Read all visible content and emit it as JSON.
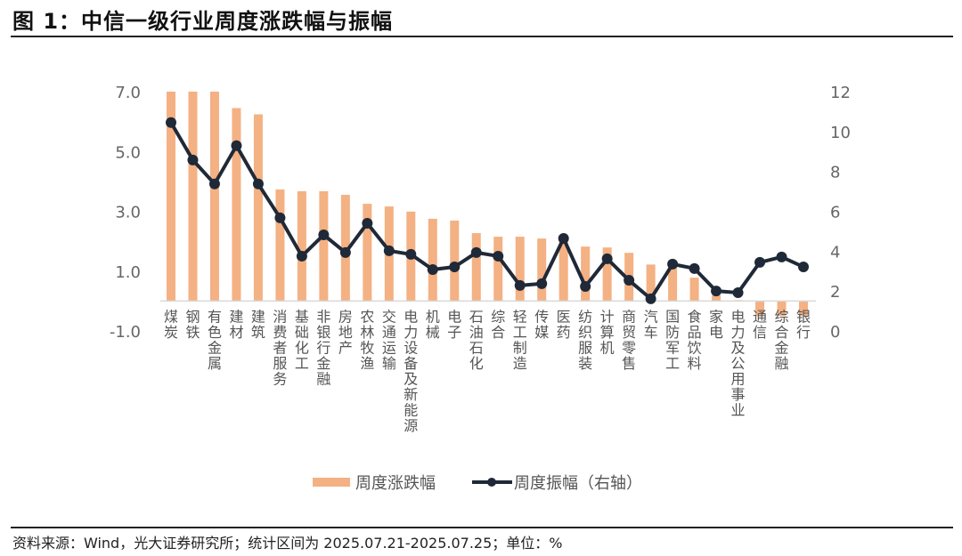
{
  "header": {
    "title": "图 1：中信一级行业周度涨跌幅与振幅"
  },
  "footer": {
    "source": "资料来源：Wind，光大证券研究所；统计区间为 2025.07.21-2025.07.25；单位：%"
  },
  "colors": {
    "bar": "#F4B183",
    "line": "#1F2937",
    "axis_text": "#666666",
    "baseline": "#D9D9D9"
  },
  "chart_data": {
    "type": "bar+line",
    "title": "中信一级行业周度涨跌幅与振幅",
    "categories": [
      "煤炭",
      "钢铁",
      "有色金属",
      "建材",
      "建筑",
      "消费者服务",
      "基础化工",
      "非银行金融",
      "房地产",
      "农林牧渔",
      "交通运输",
      "电力设备及新能源",
      "机械",
      "电子",
      "石油石化",
      "综合",
      "轻工制造",
      "传媒",
      "医药",
      "纺织服装",
      "计算机",
      "商贸零售",
      "汽车",
      "国防军工",
      "食品饮料",
      "家电",
      "电力及公用事业",
      "通信",
      "综合金融",
      "银行"
    ],
    "series": [
      {
        "name": "周度涨跌幅",
        "type": "bar",
        "axis": "left",
        "values": [
          7.0,
          7.0,
          7.0,
          6.45,
          6.24,
          3.73,
          3.67,
          3.67,
          3.55,
          3.25,
          3.16,
          2.99,
          2.75,
          2.69,
          2.27,
          2.15,
          2.15,
          2.09,
          2.05,
          1.82,
          1.79,
          1.61,
          1.22,
          1.22,
          0.78,
          0.2,
          0.03,
          -0.5,
          -0.5,
          -0.5
        ]
      },
      {
        "name": "周度振幅（右轴）",
        "type": "line",
        "axis": "right",
        "values": [
          10.45,
          8.57,
          7.37,
          9.29,
          7.37,
          5.67,
          3.75,
          4.82,
          3.93,
          5.4,
          4.02,
          3.84,
          3.08,
          3.21,
          3.93,
          3.75,
          2.28,
          2.37,
          4.64,
          2.23,
          3.62,
          2.54,
          1.61,
          3.35,
          3.13,
          2.0,
          1.92,
          3.44,
          3.71,
          3.21
        ]
      }
    ],
    "left_axis": {
      "ticks": [
        "7.0",
        "5.0",
        "3.0",
        "1.0",
        "-1.0"
      ],
      "ylim": [
        -1.0,
        7.0
      ]
    },
    "right_axis": {
      "ticks": [
        "12",
        "10",
        "8",
        "6",
        "4",
        "2",
        "0"
      ],
      "ylim": [
        0,
        12
      ]
    },
    "xlabel": "",
    "ylabel": "",
    "grid": false,
    "legend_position": "bottom",
    "legend": [
      "周度涨跌幅",
      "周度振幅（右轴）"
    ]
  }
}
